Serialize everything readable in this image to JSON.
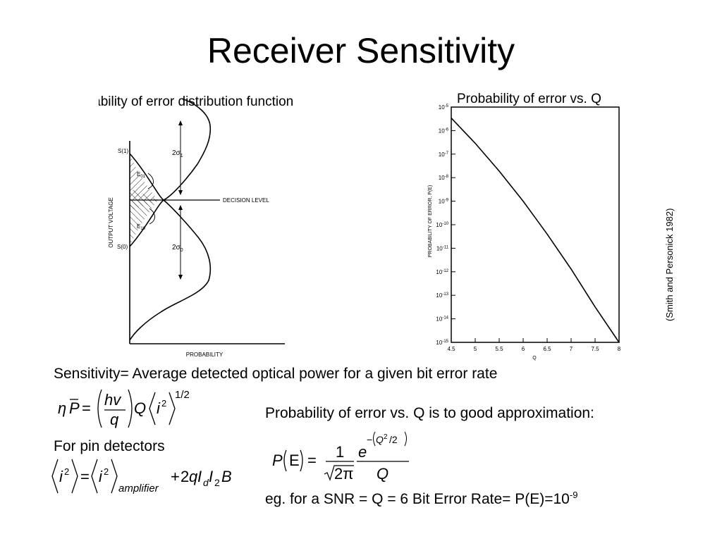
{
  "slide": {
    "title": "Receiver Sensitivity"
  },
  "left_figure": {
    "title": "Probability of error distribution function",
    "y_axis_label": "OUTPUT VOLTAGE",
    "x_axis_label": "PROBABILITY",
    "s1_label": "S(1)",
    "s0_label": "S(0)",
    "sigma1_label": "2σ",
    "sigma1_sub": "1",
    "sigma0_label": "2σ",
    "sigma0_sub": "0",
    "e01_label": "E",
    "e01_sub": "01",
    "e10_label": "E",
    "e10_sub": "10",
    "decision_label": "DECISION LEVEL"
  },
  "right_figure": {
    "title": "Probability of error vs. Q",
    "y_axis_label": "PROBABILITY OF ERROR, P(E)",
    "x_axis_label": "Q",
    "y_ticks": [
      {
        "base": "10",
        "exp": "-5"
      },
      {
        "base": "10",
        "exp": "-6"
      },
      {
        "base": "10",
        "exp": "-7"
      },
      {
        "base": "10",
        "exp": "-8"
      },
      {
        "base": "10",
        "exp": "-9"
      },
      {
        "base": "10",
        "exp": "-10"
      },
      {
        "base": "10",
        "exp": "-11"
      },
      {
        "base": "10",
        "exp": "-12"
      },
      {
        "base": "10",
        "exp": "-13"
      },
      {
        "base": "10",
        "exp": "-14"
      },
      {
        "base": "10",
        "exp": "-15"
      }
    ],
    "x_ticks": [
      "4.5",
      "5",
      "5.5",
      "6",
      "6.5",
      "7",
      "7.5",
      "8"
    ]
  },
  "chart_data": {
    "type": "line",
    "title": "Probability of error vs. Q",
    "xlabel": "Q",
    "ylabel": "PROBABILITY OF ERROR, P(E)",
    "xlim": [
      4.5,
      8
    ],
    "ylim": [
      1e-15,
      1e-05
    ],
    "y_scale": "log",
    "x": [
      4.5,
      5.0,
      5.5,
      6.0,
      6.5,
      7.0,
      7.5,
      8.0
    ],
    "y": [
      3.4e-06,
      2.9e-07,
      1.9e-08,
      1e-09,
      4e-11,
      1.3e-12,
      3.2e-14,
      6.2e-16
    ]
  },
  "citation": "(Smith and Personick 1982)",
  "sensitivity_line": "Sensitivity= Average detected optical power for a given bit error rate",
  "approx_line": "Probability of error vs. Q is to good approximation:",
  "pin_line": "For pin detectors",
  "example": {
    "text": "eg. for a SNR = Q = 6    Bit Error Rate= P(E)=10",
    "exp": "-9"
  },
  "formula1": {
    "eta": "η",
    "pbar": "P",
    "equals": "=",
    "hv": "hv",
    "q": "q",
    "Q": "Q",
    "i": "i",
    "sq": "2",
    "power": "1/2"
  },
  "formula2": {
    "i": "i",
    "sq": "2",
    "equals": "=",
    "sub": "amplifier",
    "plus": "+",
    "coef": "2",
    "q": "q",
    "I": "I",
    "d": "d",
    "two": "2",
    "B": "B"
  },
  "formula3": {
    "P": "P",
    "E": "E",
    "equals": "=",
    "one": "1",
    "root_arg": "2π",
    "e": "e",
    "neg": "−",
    "Q": "Q",
    "Qsq": "2",
    "half": "/2",
    "Qden": "Q"
  }
}
